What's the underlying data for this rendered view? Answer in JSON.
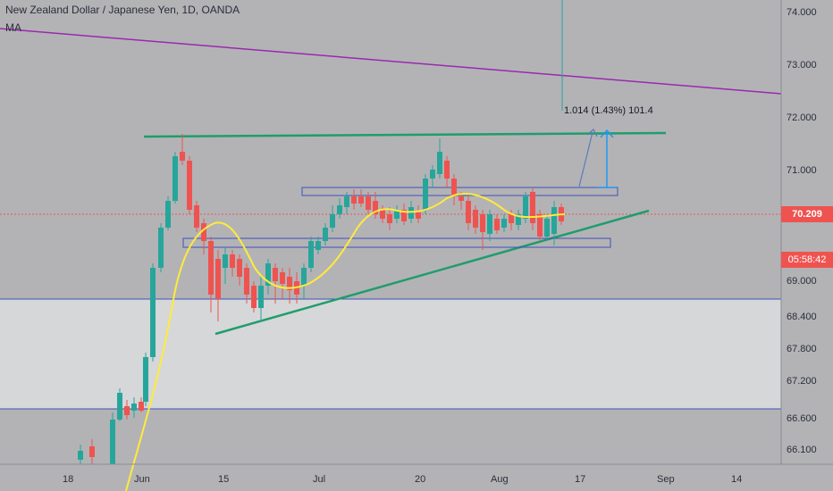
{
  "header": {
    "title": "New Zealand Dollar / Japanese Yen, 1D, OANDA",
    "indicator": "MA"
  },
  "price_axis": {
    "ticks": [
      "74.000",
      "73.000",
      "72.000",
      "71.000",
      "69.000",
      "68.400",
      "67.800",
      "67.200",
      "66.600",
      "66.100"
    ],
    "last_price_label": "70.209",
    "countdown_label": "05:58:42"
  },
  "time_axis": {
    "ticks": [
      "18",
      "Jun",
      "15",
      "Jul",
      "20",
      "Aug",
      "17",
      "Sep",
      "14"
    ]
  },
  "measure": {
    "label": "1.014 (1.43%) 101.4"
  },
  "colors": {
    "background": "#b3b3b6",
    "shaded_zone": "#d6d7d9",
    "up_candle": "#26a69a",
    "down_candle": "#ef5350",
    "moving_average": "#ffeb3b",
    "trendline": "#1f9d6b",
    "long_trendline": "#9c27b0",
    "zone_line": "#3f51b5",
    "measure_arrow": "#2196f3"
  }
}
